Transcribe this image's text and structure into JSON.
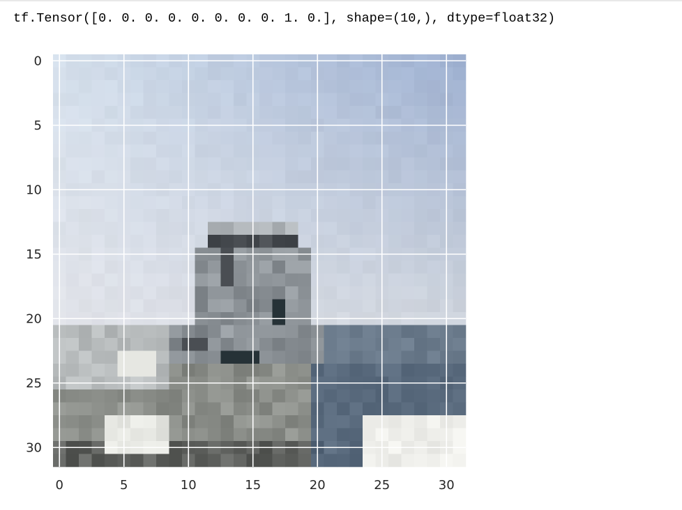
{
  "output": {
    "text": "tf.Tensor([0. 0. 0. 0. 0. 0. 0. 0. 1. 0.], shape=(10,), dtype=float32)"
  },
  "chart_data": {
    "type": "heatmap",
    "title": "",
    "xlabel": "",
    "ylabel": "",
    "xlim": [
      -0.5,
      31.5
    ],
    "ylim": [
      31.5,
      -0.5
    ],
    "grid": true,
    "grid_color": "#ffffff",
    "xticks": [
      0,
      5,
      10,
      15,
      20,
      25,
      30
    ],
    "yticks": [
      0,
      5,
      10,
      15,
      20,
      25,
      30
    ],
    "xtick_labels": [
      "0",
      "5",
      "10",
      "15",
      "20",
      "25",
      "30"
    ],
    "ytick_labels": [
      "0",
      "5",
      "10",
      "15",
      "20",
      "25",
      "30"
    ],
    "image_shape": [
      32,
      32,
      3
    ],
    "colors": {
      "sky_top_left": "#d5e0ec",
      "sky_top_right": "#9eb0d0",
      "sky_low": "#e2e4ea",
      "horizon": "#c9d0da",
      "sea": "#6b7b8c",
      "sea_dark": "#596a7d",
      "ship_light": "#aeb3b7",
      "ship_mid": "#8c9297",
      "ship_dark": "#4a4e53",
      "ship_darkest": "#263237",
      "hull_top": "#b9bdbe",
      "hull": "#8a8d88",
      "hull_dark": "#5d5f5c",
      "white_patch": "#e6e7e2",
      "foam": "#eeeeea"
    }
  }
}
